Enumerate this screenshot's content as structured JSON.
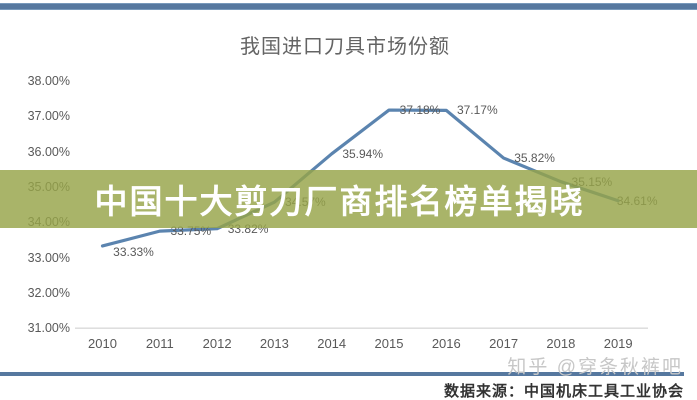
{
  "page": {
    "headline_overlay": "中国十大剪刀厂商排名榜单揭晓",
    "watermark": "知乎 @穿条秋裤吧",
    "source": "数据来源：中国机床工具工业协会"
  },
  "chart_data": {
    "type": "line",
    "title": "我国进口刀具市场份额",
    "x": [
      "2010",
      "2011",
      "2012",
      "2013",
      "2014",
      "2015",
      "2016",
      "2017",
      "2018",
      "2019"
    ],
    "values": [
      33.33,
      33.75,
      33.82,
      34.57,
      35.94,
      37.18,
      37.17,
      35.82,
      35.15,
      34.61
    ],
    "point_labels": [
      "33.33%",
      "33.75%",
      "33.82%",
      "34.57%",
      "35.94%",
      "37.18%",
      "37.17%",
      "35.82%",
      "35.15%",
      "34.61%"
    ],
    "y_tick_values": [
      38,
      37,
      36,
      35,
      34,
      33,
      32,
      31
    ],
    "y_tick_labels": [
      "38.00%",
      "37.00%",
      "36.00%",
      "35.00%",
      "34.00%",
      "33.00%",
      "32.00%",
      "31.00%"
    ],
    "ylim": [
      31,
      38
    ],
    "legend": "none",
    "grid": "single horizontal gridline at 31.00% baseline",
    "line_color": "#5B84AF"
  },
  "colors": {
    "accent_blue": "#56789F",
    "banner_bg": "rgba(150,163,72,0.82)",
    "banner_text": "#FFFFFF",
    "axis_text": "#595959",
    "gridline": "#D9D9D9",
    "watermark": "#C7C7C7",
    "source_text": "#333333",
    "title_text": "#646464"
  }
}
